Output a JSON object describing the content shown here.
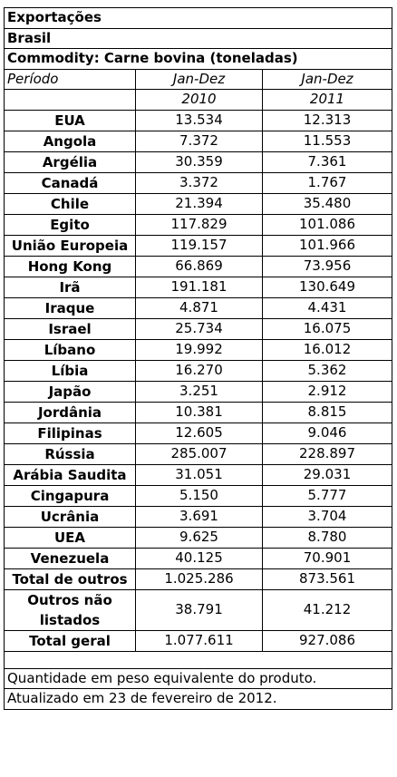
{
  "header": {
    "title": "Exportações",
    "country": "Brasil",
    "commodity": "Commodity: Carne bovina (toneladas)"
  },
  "table": {
    "period_header": [
      "Período",
      "Jan-Dez",
      "Jan-Dez"
    ],
    "years": [
      "2010",
      "2011"
    ],
    "rows": [
      [
        "EUA",
        "13.534",
        "12.313"
      ],
      [
        "Angola",
        "7.372",
        "11.553"
      ],
      [
        "Argélia",
        "30.359",
        "7.361"
      ],
      [
        "Canadá",
        "3.372",
        "1.767"
      ],
      [
        "Chile",
        "21.394",
        "35.480"
      ],
      [
        "Egito",
        "117.829",
        "101.086"
      ],
      [
        "União Europeia",
        "119.157",
        "101.966"
      ],
      [
        "Hong Kong",
        "66.869",
        "73.956"
      ],
      [
        "Irã",
        "191.181",
        "130.649"
      ],
      [
        "Iraque",
        "4.871",
        "4.431"
      ],
      [
        "Israel",
        "25.734",
        "16.075"
      ],
      [
        "Líbano",
        "19.992",
        "16.012"
      ],
      [
        "Líbia",
        "16.270",
        "5.362"
      ],
      [
        "Japão",
        "3.251",
        "2.912"
      ],
      [
        "Jordânia",
        "10.381",
        "8.815"
      ],
      [
        "Filipinas",
        "12.605",
        "9.046"
      ],
      [
        "Rússia",
        "285.007",
        "228.897"
      ],
      [
        "Arábia Saudita",
        "31.051",
        "29.031"
      ],
      [
        "Cingapura",
        "5.150",
        "5.777"
      ],
      [
        "Ucrânia",
        "3.691",
        "3.704"
      ],
      [
        "UEA",
        "9.625",
        "8.780"
      ],
      [
        "Venezuela",
        "40.125",
        "70.901"
      ],
      [
        "Total de outros",
        "1.025.286",
        "873.561"
      ],
      [
        "Outros não listados",
        "38.791",
        "41.212"
      ],
      [
        "Total geral",
        "1.077.611",
        "927.086"
      ]
    ]
  },
  "notes": [
    "Quantidade em peso equivalente do produto.",
    "Atualizado em 23 de fevereiro de 2012."
  ]
}
